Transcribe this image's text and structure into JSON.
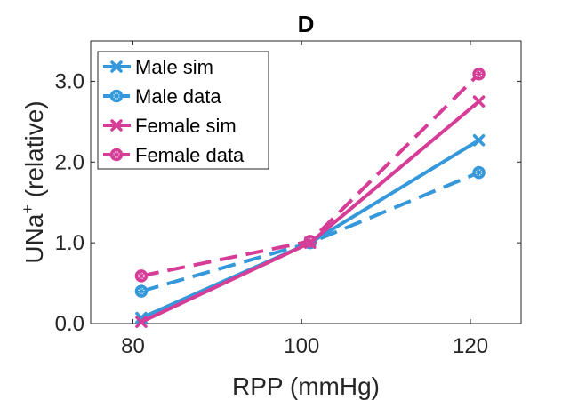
{
  "chart_data": {
    "type": "line",
    "title": "D",
    "xlabel": "RPP (mmHg)",
    "ylabel_main": "UNa",
    "ylabel_sup": "+",
    "ylabel_tail": " (relative)",
    "xlim": [
      75,
      126
    ],
    "ylim": [
      0,
      3.5
    ],
    "xticks": [
      80,
      100,
      120
    ],
    "xtick_labels": [
      "80",
      "100",
      "120"
    ],
    "yticks": [
      0,
      1,
      2,
      3
    ],
    "ytick_labels": [
      "0.0",
      "1.0",
      "2.0",
      "3.0"
    ],
    "grid": false,
    "legend_placement": "top-left",
    "series": [
      {
        "name": "Male sim",
        "color": "#3498db",
        "dash": "solid",
        "marker": "x",
        "x": [
          81,
          101,
          121
        ],
        "y": [
          0.07,
          1.0,
          2.27
        ]
      },
      {
        "name": "Male data",
        "color": "#3498db",
        "dash": "dashed",
        "marker": "o",
        "x": [
          81,
          101,
          121
        ],
        "y": [
          0.4,
          1.0,
          1.87
        ]
      },
      {
        "name": "Female sim",
        "color": "#d63d97",
        "dash": "solid",
        "marker": "x",
        "x": [
          81,
          101,
          121
        ],
        "y": [
          0.02,
          1.0,
          2.75
        ]
      },
      {
        "name": "Female data",
        "color": "#d63d97",
        "dash": "dashed",
        "marker": "o",
        "x": [
          81,
          101,
          121
        ],
        "y": [
          0.59,
          1.02,
          3.09
        ]
      }
    ]
  }
}
